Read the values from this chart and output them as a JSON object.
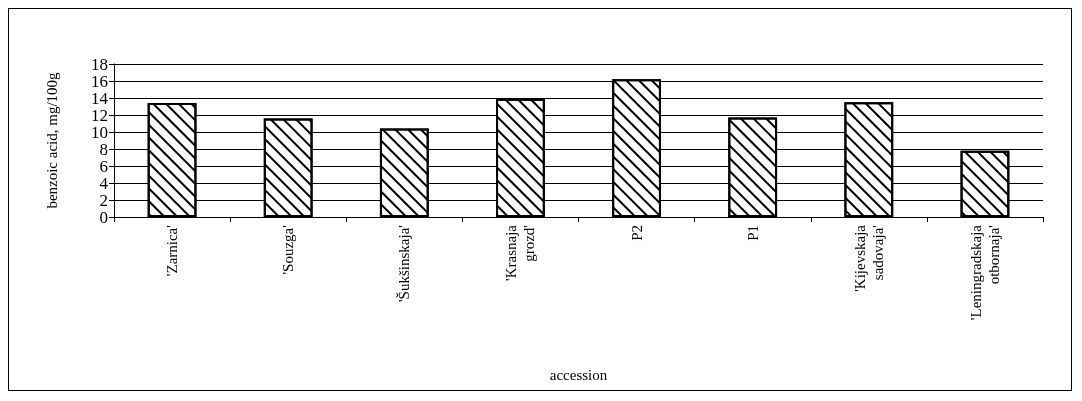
{
  "chart_data": {
    "type": "bar",
    "xlabel": "accession",
    "ylabel": "benzoic acid, mg/100g",
    "categories": [
      "'Zarnica'",
      "'Souzga'",
      "'Šukšinskaja'",
      "'Krasnaja grozd'",
      "P2",
      "P1",
      "'Kijevskaja sadovaja'",
      "'Leningradskaja otbornaja'"
    ],
    "values": [
      13.4,
      11.6,
      10.4,
      13.9,
      16.2,
      11.7,
      13.5,
      7.8
    ],
    "color": "#ffffff",
    "ylim": [
      0,
      18
    ],
    "yticks": [
      0,
      2,
      4,
      6,
      8,
      10,
      12,
      14,
      16,
      18
    ],
    "grid": "y"
  }
}
